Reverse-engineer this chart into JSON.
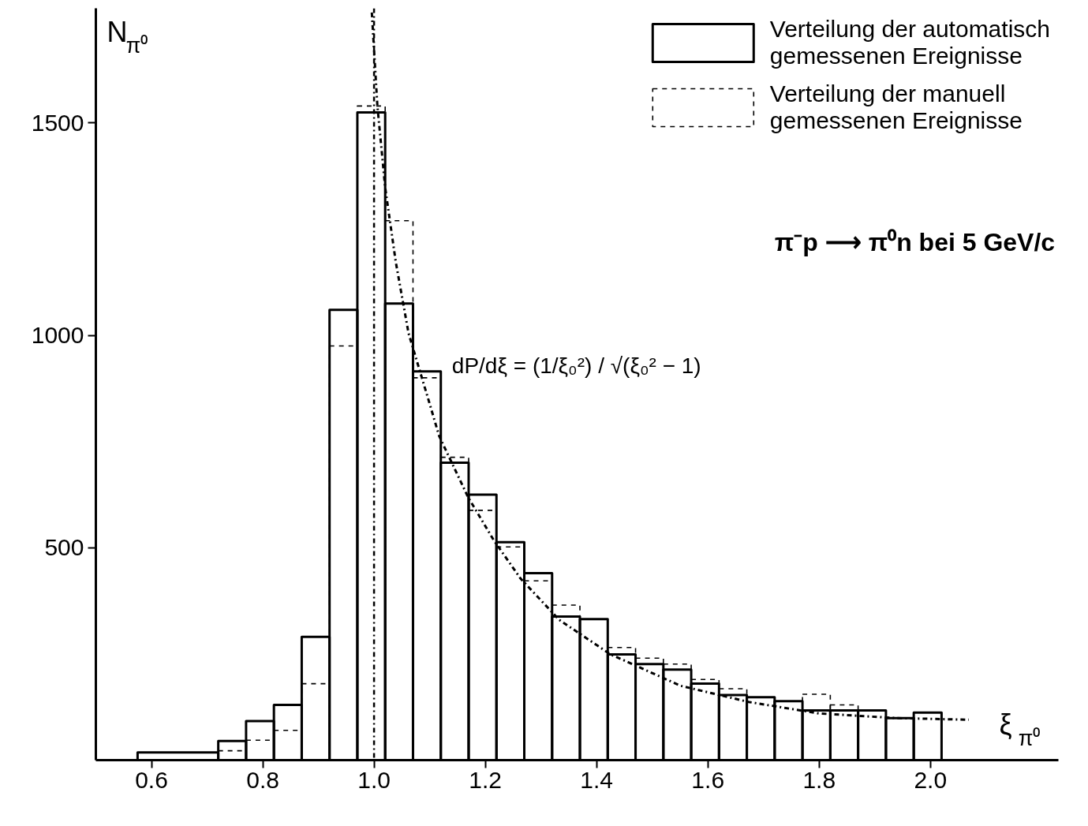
{
  "chart_data": {
    "type": "histogram",
    "xlabel": "ξ$_{π⁰}$",
    "ylabel": "N$_{π⁰}$",
    "xlim": [
      0.5,
      2.23
    ],
    "ylim": [
      0,
      1770
    ],
    "xticks": [
      {
        "value": 0.6,
        "label": "0.6"
      },
      {
        "value": 0.8,
        "label": "0.8"
      },
      {
        "value": 1.0,
        "label": "1.0"
      },
      {
        "value": 1.2,
        "label": "1.2"
      },
      {
        "value": 1.4,
        "label": "1.4"
      },
      {
        "value": 1.6,
        "label": "1.6"
      },
      {
        "value": 1.8,
        "label": "1.8"
      },
      {
        "value": 2.0,
        "label": "2.0"
      }
    ],
    "yticks": [
      500,
      1000,
      1500
    ],
    "grid": false,
    "legend": "top right",
    "series": [
      {
        "name": "Verteilung der automatisch\ngemessenen Ereignisse",
        "color": "#000000",
        "line_style": "solid",
        "bins": [
          0.575,
          0.72,
          0.77,
          0.82,
          0.87,
          0.92,
          0.97,
          1.02,
          1.07,
          1.12,
          1.17,
          1.22,
          1.27,
          1.32,
          1.37,
          1.42,
          1.47,
          1.52,
          1.57,
          1.62,
          1.67,
          1.72,
          1.77,
          1.82,
          1.87,
          1.92,
          1.97,
          2.02
        ],
        "values": [
          18,
          45,
          92,
          130,
          290,
          1060,
          1525,
          1075,
          915,
          700,
          625,
          513,
          440,
          338,
          332,
          249,
          226,
          213,
          180,
          153,
          148,
          139,
          117,
          117,
          117,
          99,
          112
        ]
      },
      {
        "name": "Verteilung der manuell\ngemessenen Ereignisse",
        "color": "#000000",
        "line_style": "dashed",
        "bins": [
          0.72,
          0.77,
          0.82,
          0.87,
          0.92,
          0.97,
          1.02,
          1.07,
          1.12,
          1.17,
          1.22,
          1.27,
          1.32,
          1.37,
          1.42,
          1.47,
          1.52,
          1.57,
          1.62,
          1.67,
          1.72,
          1.77,
          1.82,
          1.87,
          1.92,
          1.97,
          2.02
        ],
        "values": [
          22,
          47,
          70,
          180,
          975,
          1540,
          1270,
          900,
          713,
          588,
          502,
          422,
          365,
          null,
          265,
          240,
          226,
          190,
          168,
          null,
          null,
          155,
          130,
          null,
          null,
          null
        ]
      },
      {
        "type": "line",
        "color": "#000000",
        "line_style": "dashdot",
        "x": [
          0.996,
          1.006,
          1.02,
          1.039,
          1.062,
          1.099,
          1.117,
          1.169,
          1.215,
          1.263,
          1.333,
          1.425,
          1.551,
          1.673,
          1.799,
          1.938,
          2.069
        ],
        "values": [
          1760,
          1540,
          1348,
          1173,
          1005,
          843,
          763,
          619,
          518,
          428,
          330,
          249,
          175,
          137,
          110,
          99,
          95
        ]
      }
    ],
    "ref_lines": [
      {
        "axis": "x",
        "value": 1.0,
        "color": "#000000",
        "line_style": "dashdot"
      }
    ],
    "annotations": [
      "dP/dξ = (1/ξ₀²) / √(ξ₀² − 1)",
      "π⁻p ⟶ π⁰n  bei 5 GeV/c"
    ]
  }
}
